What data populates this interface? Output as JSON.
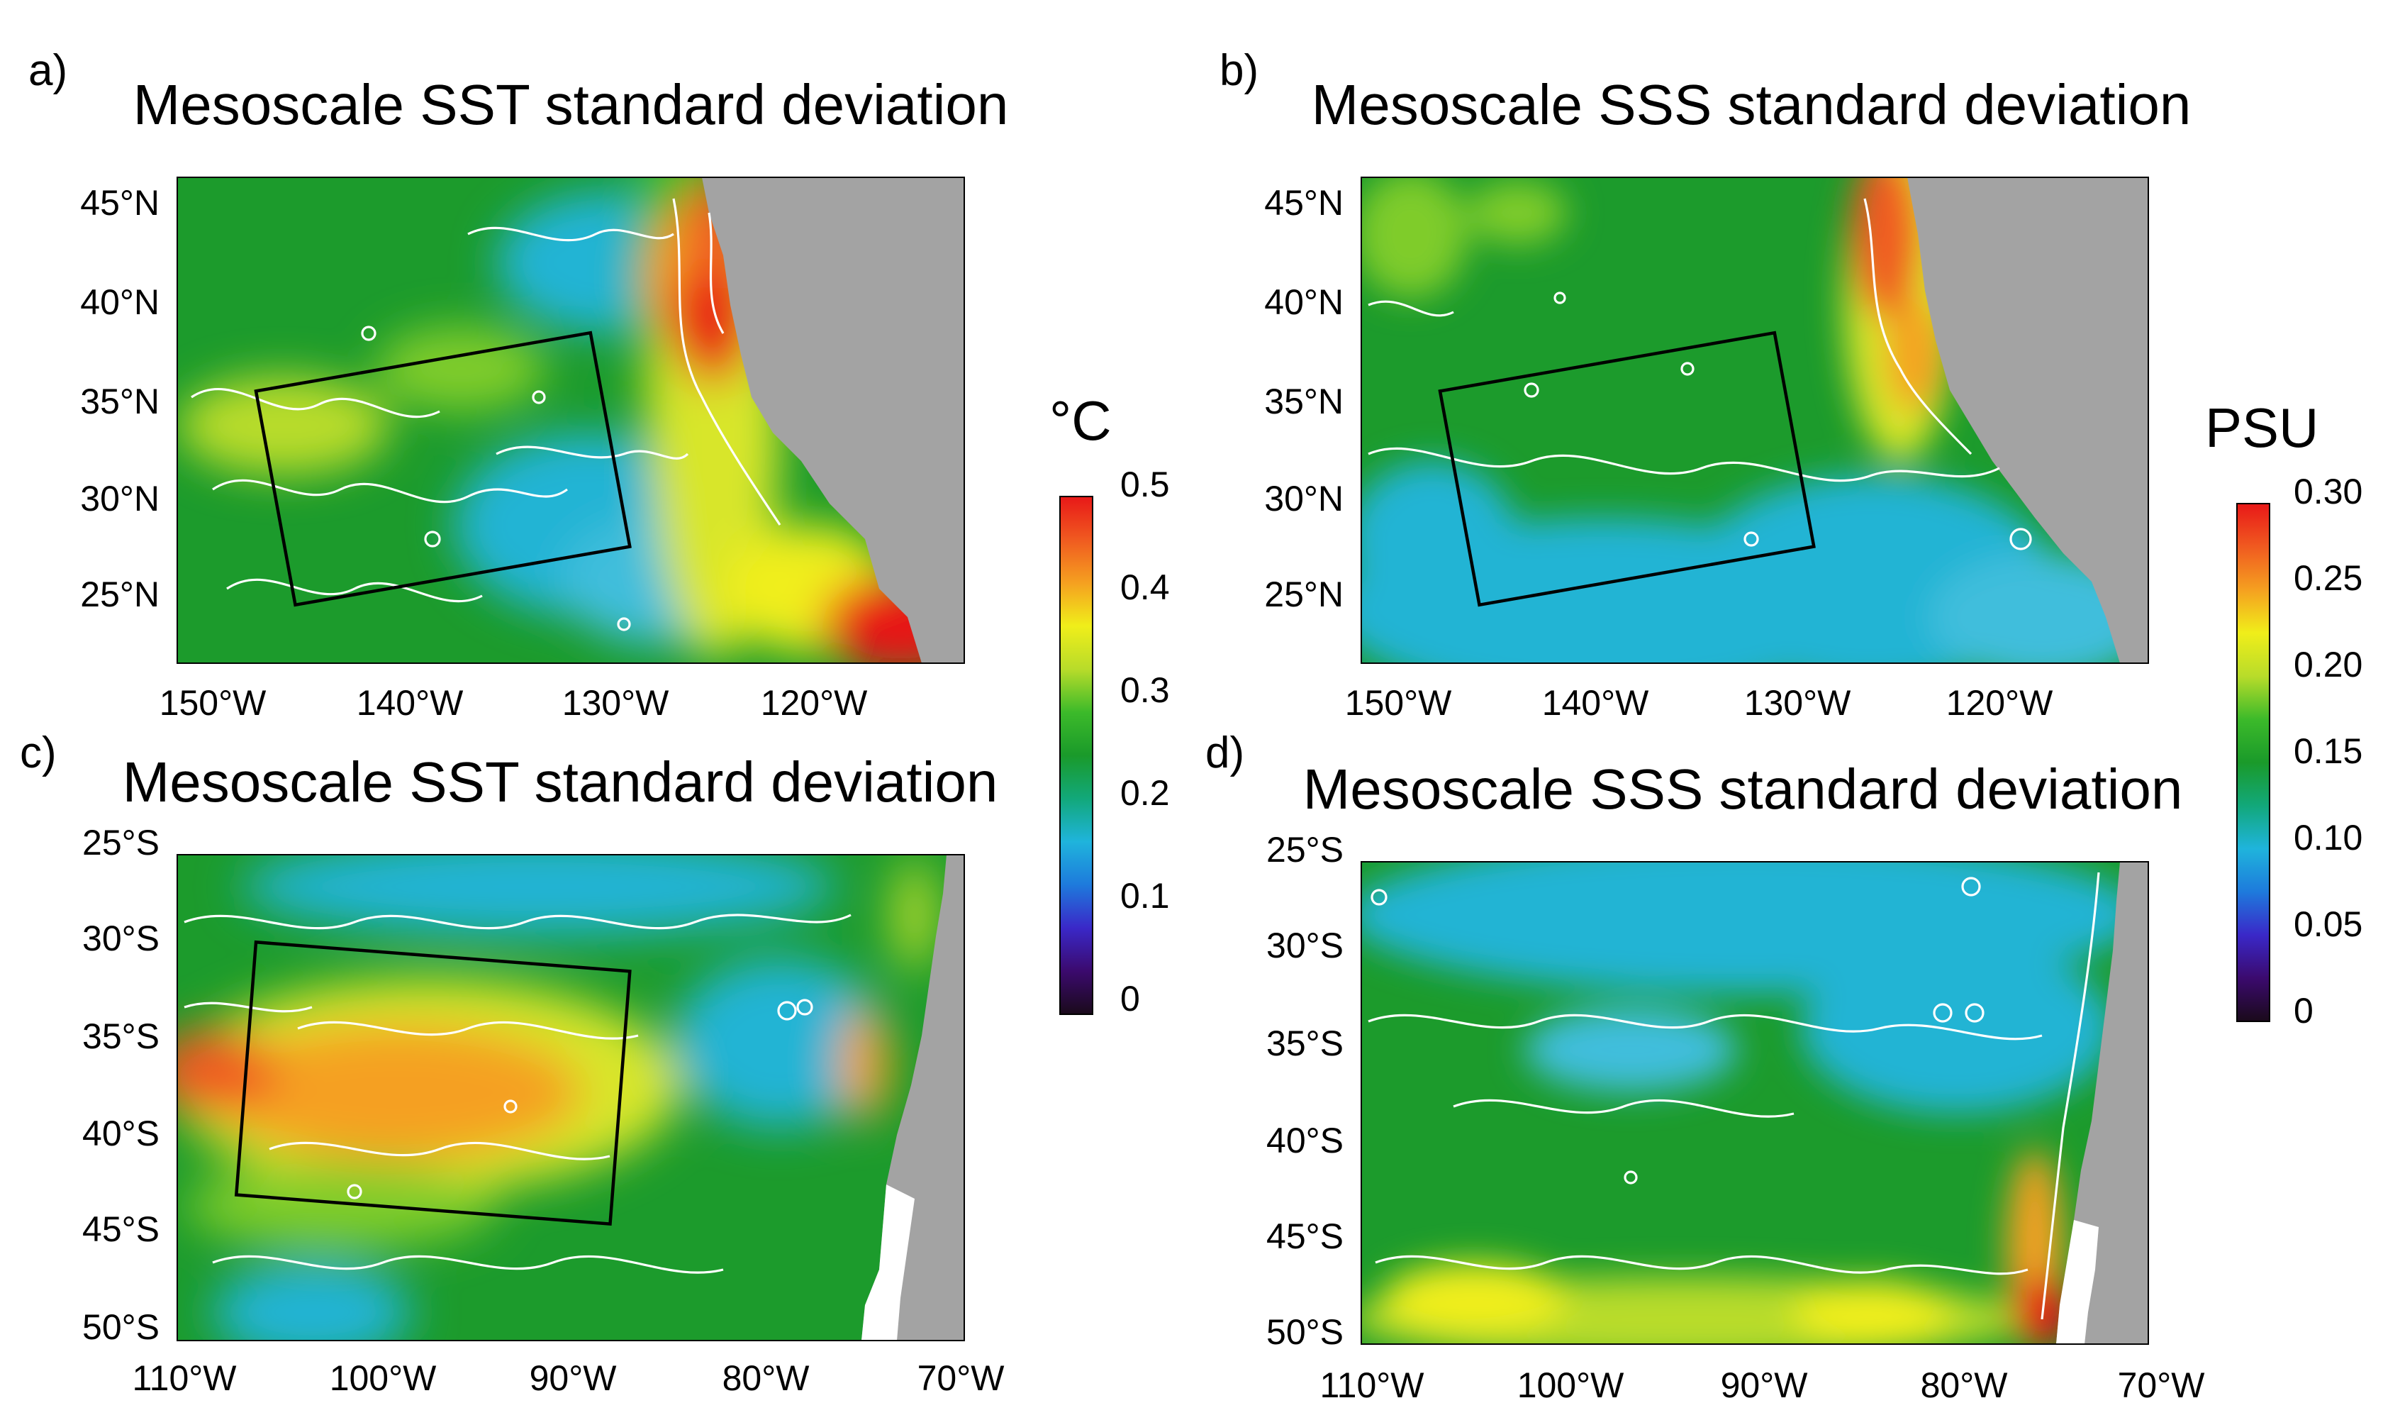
{
  "chart_data": [
    {
      "type": "heatmap",
      "panel": "a)",
      "title": "Mesoscale SST standard deviation",
      "quantity": "SST",
      "xlabel": "",
      "ylabel": "",
      "x_ticks": [
        "150°W",
        "140°W",
        "130°W",
        "120°W"
      ],
      "y_ticks": [
        "45°N",
        "40°N",
        "35°N",
        "30°N",
        "25°N"
      ],
      "xlim": [
        -152,
        -112
      ],
      "ylim": [
        21.5,
        46.5
      ],
      "region_box": [
        [
          -148,
          35.5
        ],
        [
          -131,
          38.5
        ],
        [
          -129,
          27.5
        ],
        [
          -146,
          24.5
        ]
      ],
      "land": "coast on the east side"
    },
    {
      "type": "heatmap",
      "panel": "b)",
      "title": "Mesoscale SSS standard deviation",
      "quantity": "SSS",
      "xlabel": "",
      "ylabel": "",
      "x_ticks": [
        "150°W",
        "140°W",
        "130°W",
        "120°W"
      ],
      "y_ticks": [
        "45°N",
        "40°N",
        "35°N",
        "30°N",
        "25°N"
      ],
      "xlim": [
        -152,
        -112
      ],
      "ylim": [
        21.5,
        46.5
      ],
      "region_box": [
        [
          -148,
          35.5
        ],
        [
          -131,
          38.5
        ],
        [
          -129,
          27.5
        ],
        [
          -146,
          24.5
        ]
      ],
      "land": "coast on the east side"
    },
    {
      "type": "heatmap",
      "panel": "c)",
      "title": "Mesoscale SST standard deviation",
      "quantity": "SST",
      "xlabel": "",
      "ylabel": "",
      "x_ticks": [
        "110°W",
        "100°W",
        "90°W",
        "80°W",
        "70°W"
      ],
      "y_ticks": [
        "25°S",
        "30°S",
        "35°S",
        "40°S",
        "45°S",
        "50°S"
      ],
      "xlim": [
        -110,
        -70
      ],
      "ylim": [
        -50.5,
        -25.5
      ],
      "region_box": [
        [
          -106,
          -30
        ],
        [
          -87,
          -31.5
        ],
        [
          -88,
          -44.5
        ],
        [
          -107,
          -43
        ]
      ],
      "land": "coast on the east side"
    },
    {
      "type": "heatmap",
      "panel": "d)",
      "title": "Mesoscale SSS standard deviation",
      "quantity": "SSS",
      "xlabel": "",
      "ylabel": "",
      "x_ticks": [
        "110°W",
        "100°W",
        "90°W",
        "80°W",
        "70°W"
      ],
      "y_ticks": [
        "25°S",
        "30°S",
        "35°S",
        "40°S",
        "45°S",
        "50°S"
      ],
      "xlim": [
        -110,
        -70
      ],
      "ylim": [
        -50.5,
        -25.5
      ],
      "region_box": null,
      "land": "coast on the east side"
    }
  ],
  "colorbars": {
    "sst": {
      "unit": "°C",
      "min": 0,
      "max": 0.5,
      "tick_labels": [
        "0.5",
        "0.4",
        "0.3",
        "0.2",
        "0.1",
        "0"
      ]
    },
    "sss": {
      "unit": "PSU",
      "min": 0,
      "max": 0.3,
      "tick_labels": [
        "0.30",
        "0.25",
        "0.20",
        "0.15",
        "0.10",
        "0.05",
        "0"
      ]
    }
  },
  "colormap": [
    "#1a0a1a",
    "#3b0a6e",
    "#3a28c8",
    "#1e7adc",
    "#1fb4dc",
    "#12a87a",
    "#1a9a2a",
    "#3cba2a",
    "#b8dc2a",
    "#f0ee1a",
    "#f5a020",
    "#f05a20",
    "#e81818"
  ],
  "colors": {
    "land": "#a3a3a3",
    "contour": "#ffffff",
    "frame": "#000000"
  }
}
